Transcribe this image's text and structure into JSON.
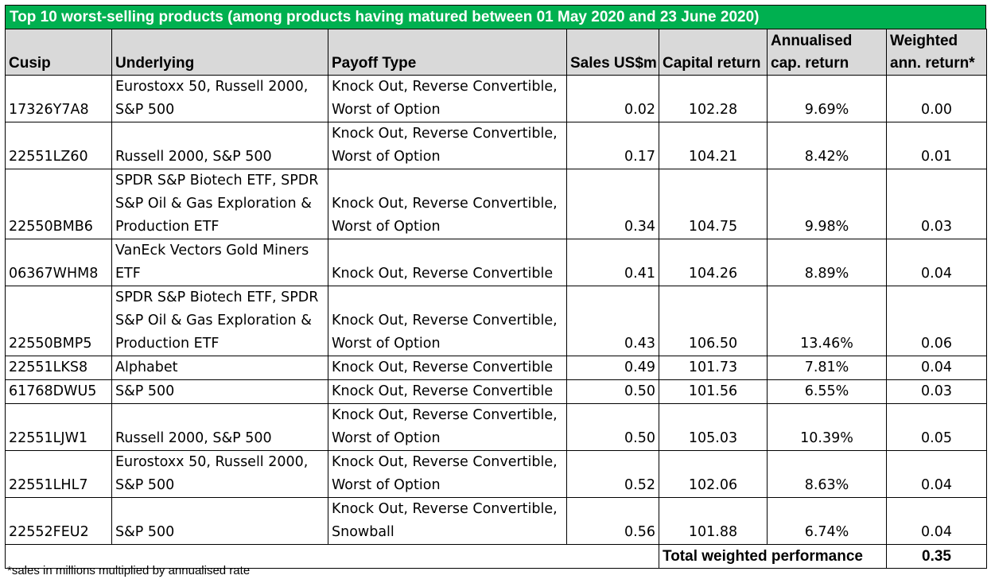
{
  "title": "Top 10 worst-selling products (among products having matured between 01 May 2020 and 23 June 2020)",
  "columns": {
    "cusip": "Cusip",
    "underlying": "Underlying",
    "payoff": "Payoff Type",
    "sales": "Sales US$m",
    "capital_return": "Capital return",
    "annualised_l1": "Annualised",
    "annualised_l2": "cap. return",
    "weighted_l1": "Weighted",
    "weighted_l2": "ann. return*"
  },
  "rows": [
    {
      "cusip": "17326Y7A8",
      "underlying": [
        "Eurostoxx 50, Russell 2000,",
        "S&P 500"
      ],
      "payoff": [
        "Knock Out, Reverse Convertible,",
        "Worst of Option"
      ],
      "sales": "0.02",
      "capital_return": "102.28",
      "annualised": "9.69%",
      "weighted": "0.00"
    },
    {
      "cusip": "22551LZ60",
      "underlying": [
        "Russell 2000, S&P 500"
      ],
      "payoff": [
        "Knock Out, Reverse Convertible,",
        "Worst of Option"
      ],
      "sales": "0.17",
      "capital_return": "104.21",
      "annualised": "8.42%",
      "weighted": "0.01"
    },
    {
      "cusip": "22550BMB6",
      "underlying": [
        "SPDR S&P Biotech ETF, SPDR",
        "S&P Oil & Gas Exploration &",
        "Production ETF"
      ],
      "payoff": [
        "Knock Out, Reverse Convertible,",
        "Worst of Option"
      ],
      "sales": "0.34",
      "capital_return": "104.75",
      "annualised": "9.98%",
      "weighted": "0.03"
    },
    {
      "cusip": "06367WHM8",
      "underlying": [
        "VanEck Vectors Gold Miners",
        "ETF"
      ],
      "payoff": [
        "Knock Out, Reverse Convertible"
      ],
      "sales": "0.41",
      "capital_return": "104.26",
      "annualised": "8.89%",
      "weighted": "0.04"
    },
    {
      "cusip": "22550BMP5",
      "underlying": [
        "SPDR S&P Biotech ETF, SPDR",
        "S&P Oil & Gas Exploration &",
        "Production ETF"
      ],
      "payoff": [
        "Knock Out, Reverse Convertible,",
        "Worst of Option"
      ],
      "sales": "0.43",
      "capital_return": "106.50",
      "annualised": "13.46%",
      "weighted": "0.06"
    },
    {
      "cusip": "22551LKS8",
      "underlying": [
        "Alphabet"
      ],
      "payoff": [
        "Knock Out, Reverse Convertible"
      ],
      "sales": "0.49",
      "capital_return": "101.73",
      "annualised": "7.81%",
      "weighted": "0.04"
    },
    {
      "cusip": "61768DWU5",
      "underlying": [
        "S&P 500"
      ],
      "payoff": [
        "Knock Out, Reverse Convertible"
      ],
      "sales": "0.50",
      "capital_return": "101.56",
      "annualised": "6.55%",
      "weighted": "0.03"
    },
    {
      "cusip": "22551LJW1",
      "underlying": [
        "Russell 2000, S&P 500"
      ],
      "payoff": [
        "Knock Out, Reverse Convertible,",
        "Worst of Option"
      ],
      "sales": "0.50",
      "capital_return": "105.03",
      "annualised": "10.39%",
      "weighted": "0.05"
    },
    {
      "cusip": "22551LHL7",
      "underlying": [
        "Eurostoxx 50, Russell 2000,",
        "S&P 500"
      ],
      "payoff": [
        "Knock Out, Reverse Convertible,",
        "Worst of Option"
      ],
      "sales": "0.52",
      "capital_return": "102.06",
      "annualised": "8.63%",
      "weighted": "0.04"
    },
    {
      "cusip": "22552FEU2",
      "underlying": [
        "S&P 500"
      ],
      "payoff": [
        "Knock Out, Reverse Convertible,",
        "Snowball"
      ],
      "sales": "0.56",
      "capital_return": "101.88",
      "annualised": "6.74%",
      "weighted": "0.04"
    }
  ],
  "total": {
    "label": "Total weighted performance",
    "value": "0.35"
  },
  "footnote": "*sales in millions multiplied by annualised rate",
  "colors": {
    "title_bg": "#00b050",
    "title_text": "#ffffff",
    "header_bg": "#d9d9d9"
  }
}
